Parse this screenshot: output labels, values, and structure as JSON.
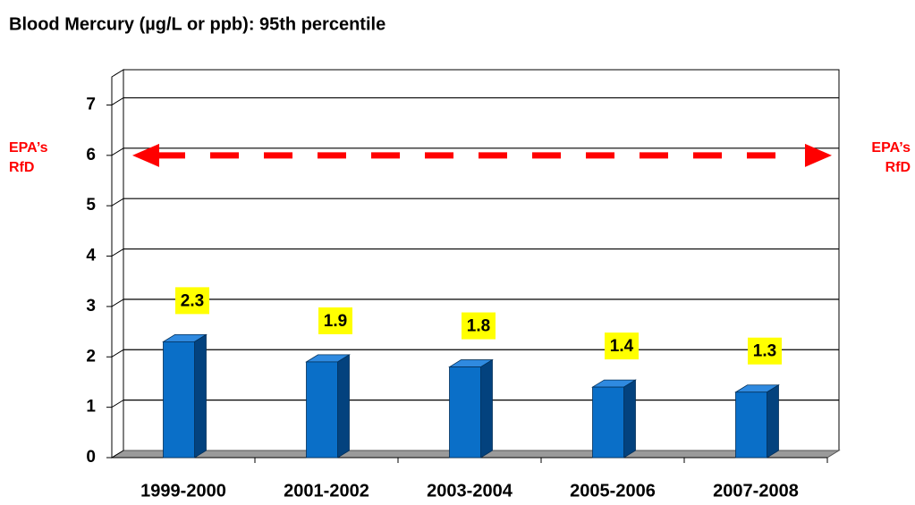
{
  "chart_data": {
    "type": "bar3d",
    "title": "Blood Mercury (µg/L or ppb): 95th percentile",
    "categories": [
      "1999-2000",
      "2001-2002",
      "2003-2004",
      "2005-2006",
      "2007-2008"
    ],
    "values": [
      2.3,
      1.9,
      1.8,
      1.4,
      1.3
    ],
    "color": "#0a6fc8",
    "ylim": [
      0,
      7.7
    ],
    "yticks": [
      0,
      1,
      2,
      3,
      4,
      5,
      6,
      7
    ],
    "grid": true,
    "reference_line": {
      "value": 6,
      "label": [
        "EPA’s",
        "RfD"
      ],
      "color": "#ff0000"
    }
  }
}
